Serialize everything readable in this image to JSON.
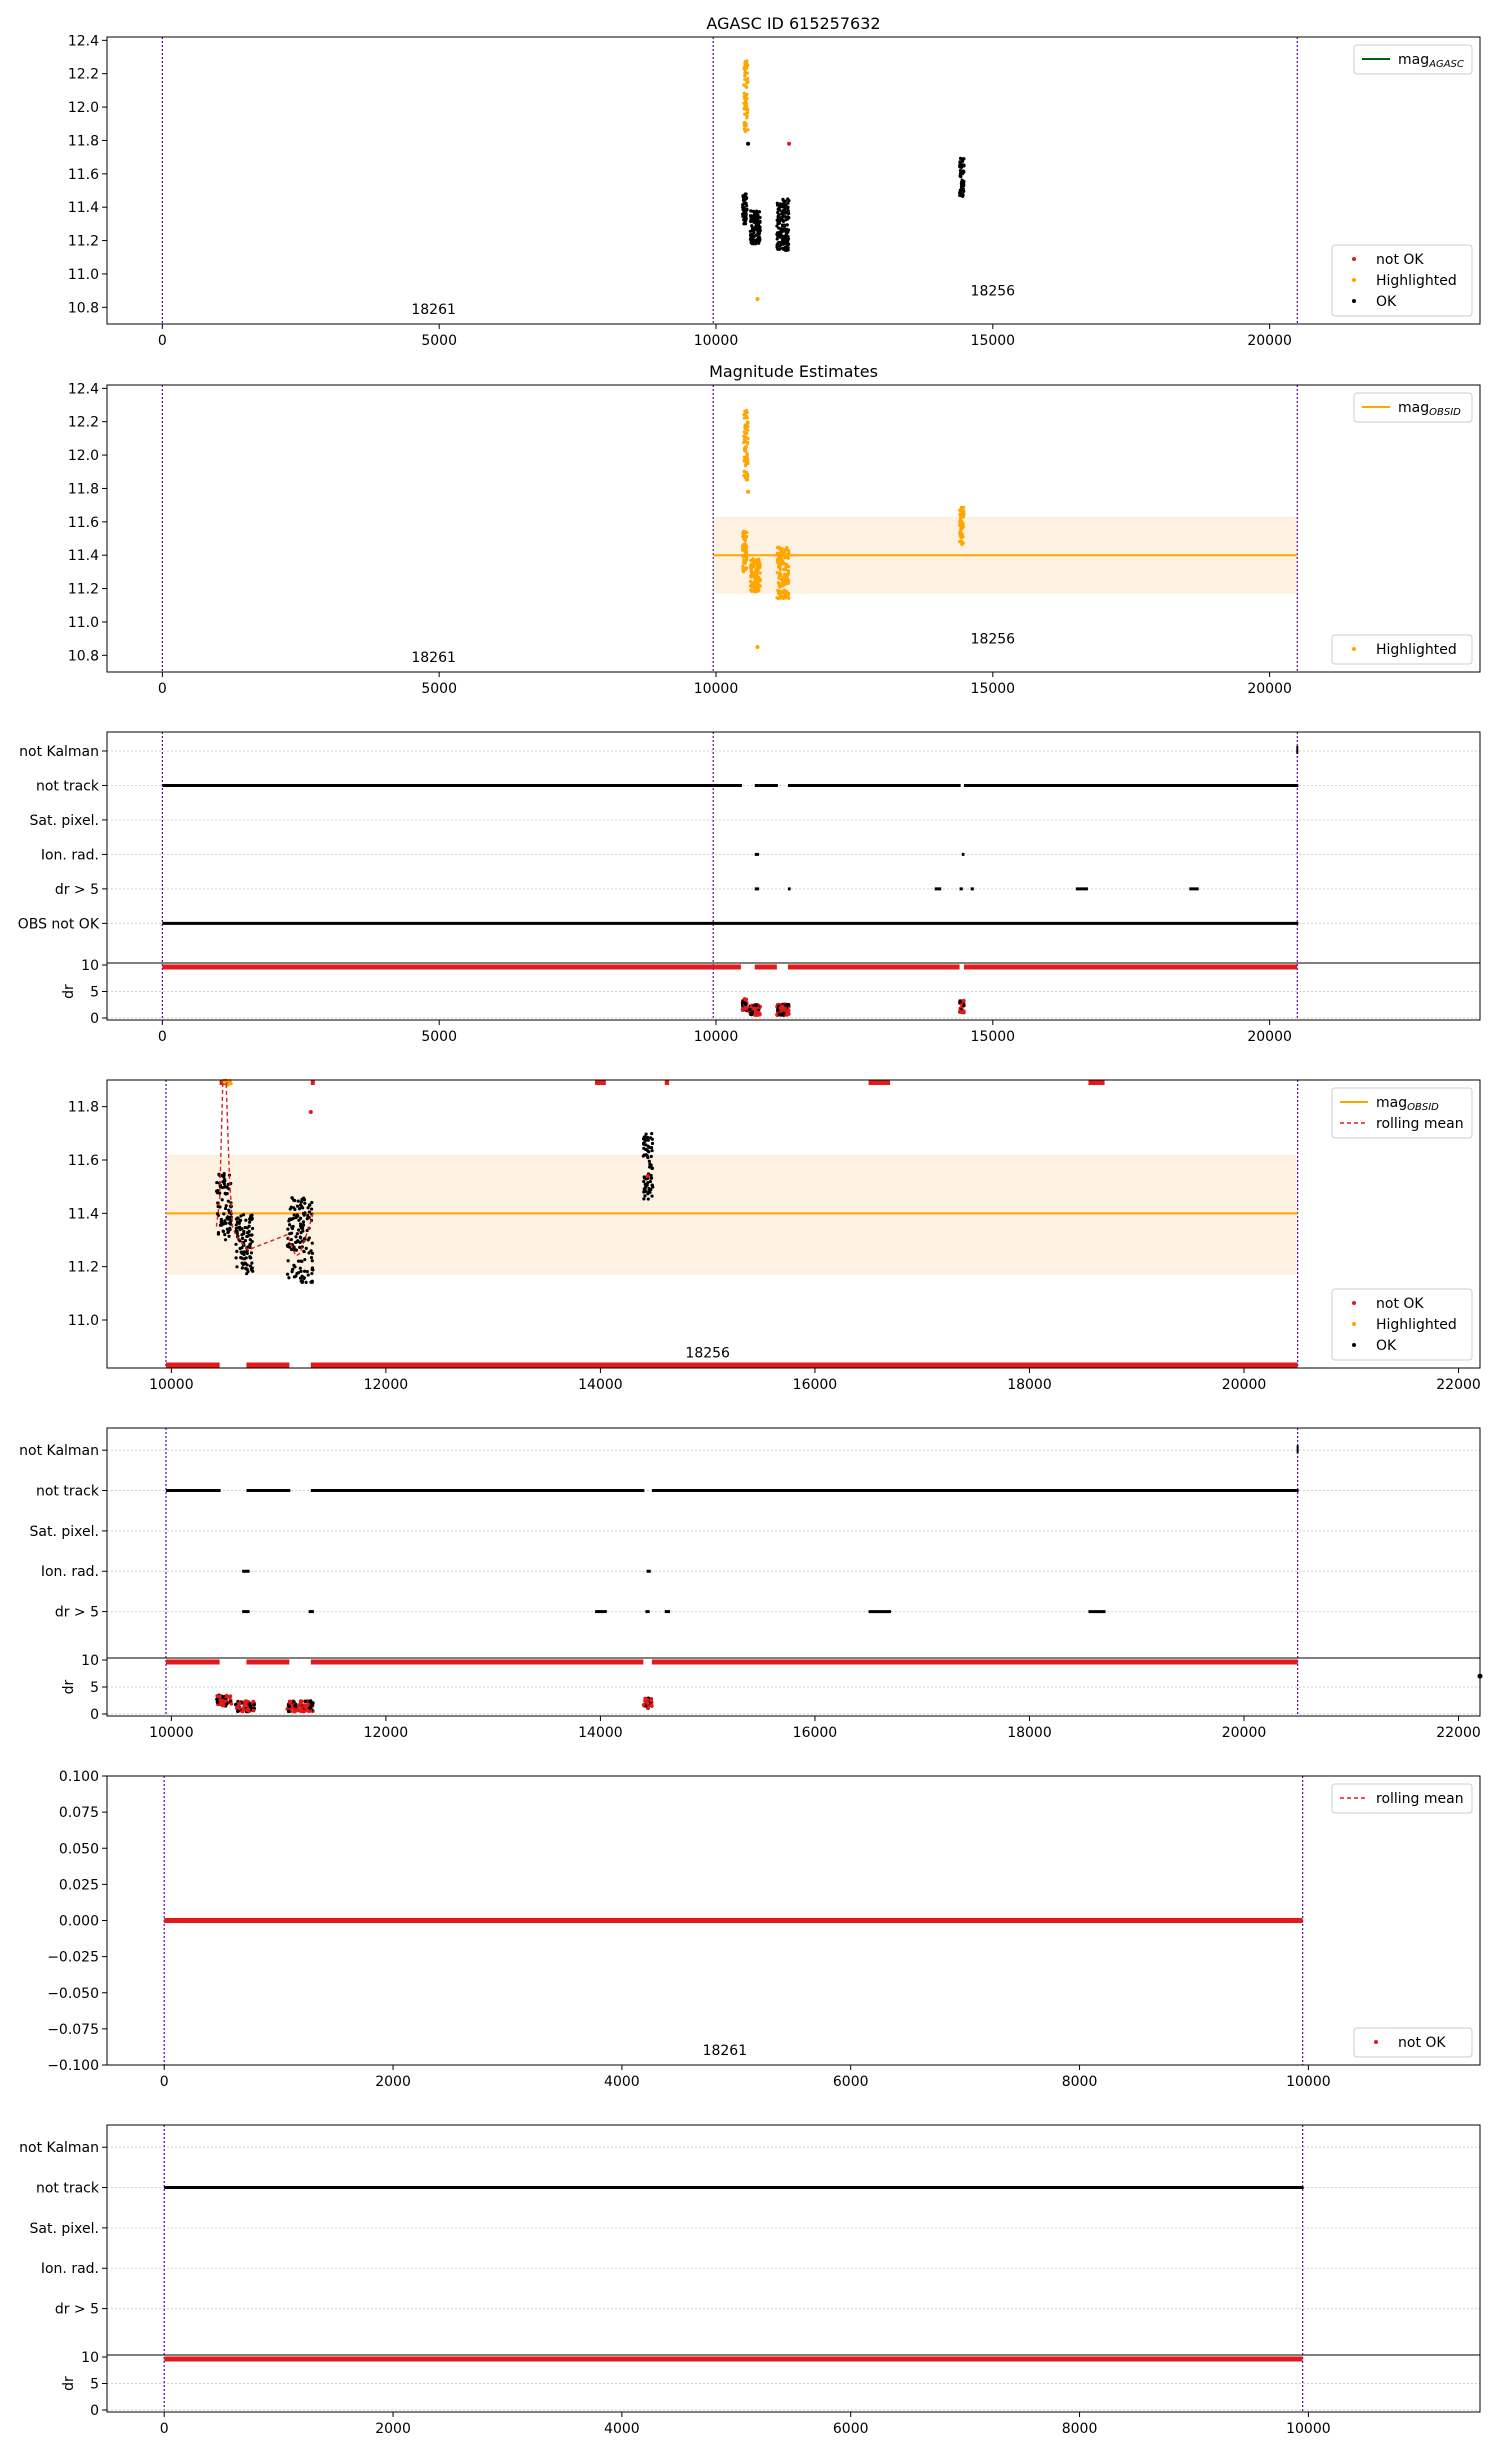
{
  "figure": {
    "panels": [
      {
        "id": "p1",
        "kind": "mag",
        "title": "AGASC ID 615257632",
        "xlim": [
          -1000,
          23800
        ],
        "ylim": [
          10.7,
          12.42
        ],
        "xticks": [
          0,
          5000,
          10000,
          15000,
          20000
        ],
        "yticks": [
          10.8,
          11.0,
          11.2,
          11.4,
          11.6,
          11.8,
          12.0,
          12.2,
          12.4
        ],
        "obs_lines": [
          0,
          9950,
          20500
        ],
        "obs_labels": [
          {
            "text": "18261",
            "x": 4900,
            "y": 10.76
          },
          {
            "text": "18256",
            "x": 15000,
            "y": 10.87
          }
        ],
        "band": null,
        "mean_line": {
          "y": 11.38,
          "x": [
            0,
            20500
          ],
          "color": "#006400",
          "show": false
        },
        "legend_top": [
          {
            "label": "mag",
            "sub": "AGASC",
            "style": "line",
            "color": "#006400"
          }
        ],
        "legend_bottom": [
          {
            "label": "not OK",
            "style": "dot",
            "color": "#e31a1c"
          },
          {
            "label": "Highlighted",
            "style": "dot",
            "color": "#ffa500"
          },
          {
            "label": "OK",
            "style": "dot",
            "color": "#000000"
          }
        ],
        "clusters": [
          {
            "x": [
              10480,
              10560
            ],
            "y": [
              11.3,
              11.48
            ],
            "n": 70,
            "color": "#000000"
          },
          {
            "x": [
              10500,
              10580
            ],
            "y": [
              11.85,
              12.28
            ],
            "n": 70,
            "color": "#ffa500"
          },
          {
            "x": [
              10620,
              10800
            ],
            "y": [
              11.18,
              11.38
            ],
            "n": 120,
            "color": "#000000"
          },
          {
            "x": [
              11100,
              11320
            ],
            "y": [
              11.14,
              11.45
            ],
            "n": 150,
            "color": "#000000"
          },
          {
            "x": [
              14400,
              14480
            ],
            "y": [
              11.46,
              11.7
            ],
            "n": 60,
            "color": "#000000"
          }
        ],
        "points": [
          {
            "x": 11320,
            "y": 11.78,
            "color": "#e31a1c"
          },
          {
            "x": 10750,
            "y": 10.85,
            "color": "#ffa500"
          },
          {
            "x": 10580,
            "y": 11.78,
            "color": "#000000"
          }
        ],
        "rolling": null,
        "bottom_markers": false
      },
      {
        "id": "p2",
        "kind": "mag",
        "title": "Magnitude Estimates",
        "xlim": [
          -1000,
          23800
        ],
        "ylim": [
          10.7,
          12.42
        ],
        "xticks": [
          0,
          5000,
          10000,
          15000,
          20000
        ],
        "yticks": [
          10.8,
          11.0,
          11.2,
          11.4,
          11.6,
          11.8,
          12.0,
          12.2,
          12.4
        ],
        "obs_lines": [
          0,
          9950,
          20500
        ],
        "obs_labels": [
          {
            "text": "18261",
            "x": 4900,
            "y": 10.76
          },
          {
            "text": "18256",
            "x": 15000,
            "y": 10.87
          }
        ],
        "band": {
          "x": [
            9950,
            20500
          ],
          "y": [
            11.17,
            11.63
          ],
          "color": "#fdf2e2"
        },
        "mean_line": {
          "y": 11.4,
          "x": [
            9950,
            20500
          ],
          "color": "#ffa500",
          "show": true
        },
        "legend_top": [
          {
            "label": "mag",
            "sub": "OBSID",
            "style": "line",
            "color": "#ffa500"
          }
        ],
        "legend_bottom": [
          {
            "label": "Highlighted",
            "style": "dot",
            "color": "#ffa500"
          }
        ],
        "clusters": [
          {
            "x": [
              10480,
              10560
            ],
            "y": [
              11.3,
              11.55
            ],
            "n": 70,
            "color": "#ffa500"
          },
          {
            "x": [
              10500,
              10580
            ],
            "y": [
              11.85,
              12.28
            ],
            "n": 70,
            "color": "#ffa500"
          },
          {
            "x": [
              10620,
              10800
            ],
            "y": [
              11.18,
              11.38
            ],
            "n": 120,
            "color": "#ffa500"
          },
          {
            "x": [
              11100,
              11320
            ],
            "y": [
              11.14,
              11.45
            ],
            "n": 150,
            "color": "#ffa500"
          },
          {
            "x": [
              14400,
              14480
            ],
            "y": [
              11.46,
              11.7
            ],
            "n": 60,
            "color": "#ffa500"
          }
        ],
        "points": [
          {
            "x": 10750,
            "y": 10.85,
            "color": "#ffa500"
          },
          {
            "x": 10580,
            "y": 11.78,
            "color": "#ffa500"
          }
        ],
        "rolling": null,
        "bottom_markers": false
      },
      {
        "id": "p3",
        "kind": "flags",
        "xlim": [
          -1000,
          23800
        ],
        "xticks": [
          0,
          5000,
          10000,
          15000,
          20000
        ],
        "obs_lines": [
          0,
          9950,
          20500
        ],
        "flag_labels": [
          "not Kalman",
          "not track",
          "Sat. pixel.",
          "Ion. rad.",
          "dr > 5",
          "OBS not OK"
        ],
        "flag_segments": [
          {
            "row": 1,
            "segments": [
              [
                0,
                10450
              ],
              [
                10700,
                11100
              ],
              [
                11300,
                14400
              ],
              [
                14480,
                20500
              ]
            ]
          },
          {
            "row": 3,
            "segments": [
              [
                10700,
                10760
              ],
              [
                14440,
                14470
              ]
            ]
          },
          {
            "row": 4,
            "segments": [
              [
                10700,
                10760
              ],
              [
                11300,
                11330
              ],
              [
                13950,
                14050
              ],
              [
                14400,
                14440
              ],
              [
                14600,
                14640
              ],
              [
                16500,
                16700
              ],
              [
                18550,
                18700
              ]
            ]
          },
          {
            "row": 5,
            "segments": [
              [
                0,
                20500
              ]
            ]
          }
        ],
        "not_kalman_tick": 20500,
        "dr_label": "dr",
        "dr_yticks": [
          0,
          5,
          10
        ],
        "dr_line_x": [
          0,
          20500
        ],
        "dr_gaps": [
          [
            10450,
            10700
          ],
          [
            11100,
            11300
          ],
          [
            14400,
            14480
          ]
        ],
        "dr_clusters": [
          {
            "x": [
              10480,
              10560
            ],
            "y": [
              1.2,
              3.6
            ],
            "n": 50
          },
          {
            "x": [
              10600,
              10800
            ],
            "y": [
              0.5,
              2.5
            ],
            "n": 70
          },
          {
            "x": [
              11100,
              11320
            ],
            "y": [
              0.5,
              2.6
            ],
            "n": 80
          },
          {
            "x": [
              14400,
              14480
            ],
            "y": [
              1.0,
              3.3
            ],
            "n": 30
          }
        ]
      },
      {
        "id": "p4",
        "kind": "mag",
        "title": "",
        "xlim": [
          9400,
          22200
        ],
        "ylim": [
          10.82,
          11.9
        ],
        "xticks": [
          10000,
          12000,
          14000,
          16000,
          18000,
          20000,
          22000
        ],
        "yticks": [
          11.0,
          11.2,
          11.4,
          11.6,
          11.8
        ],
        "obs_lines": [
          9950,
          20500
        ],
        "obs_labels": [
          {
            "text": "18256",
            "x": 15000,
            "y": 10.86
          }
        ],
        "band": {
          "x": [
            9950,
            20500
          ],
          "y": [
            11.17,
            11.62
          ],
          "color": "#fdf2e2"
        },
        "mean_line": {
          "y": 11.4,
          "x": [
            9950,
            20500
          ],
          "color": "#ffa500",
          "show": true
        },
        "legend_top": [
          {
            "label": "mag",
            "sub": "OBSID",
            "style": "line",
            "color": "#ffa500"
          },
          {
            "label": "rolling mean",
            "style": "dash",
            "color": "#e31a1c"
          }
        ],
        "legend_bottom": [
          {
            "label": "not OK",
            "style": "dot",
            "color": "#e31a1c"
          },
          {
            "label": "Highlighted",
            "style": "dot",
            "color": "#ffa500"
          },
          {
            "label": "OK",
            "style": "dot",
            "color": "#000000"
          }
        ],
        "clusters": [
          {
            "x": [
              10420,
              10560
            ],
            "y": [
              11.3,
              11.55
            ],
            "n": 80,
            "color": "#000000"
          },
          {
            "x": [
              10600,
              10760
            ],
            "y": [
              11.17,
              11.4
            ],
            "n": 100,
            "color": "#000000"
          },
          {
            "x": [
              11080,
              11320
            ],
            "y": [
              11.14,
              11.46
            ],
            "n": 140,
            "color": "#000000"
          },
          {
            "x": [
              14400,
              14490
            ],
            "y": [
              11.45,
              11.7
            ],
            "n": 70,
            "color": "#000000"
          },
          {
            "x": [
              10480,
              10560
            ],
            "y": [
              11.88,
              11.9
            ],
            "n": 12,
            "color": "#ffa500"
          }
        ],
        "points": [
          {
            "x": 11300,
            "y": 11.78,
            "color": "#e31a1c"
          },
          {
            "x": 14440,
            "y": 11.54,
            "color": "#e31a1c"
          }
        ],
        "rolling": {
          "x": [
            10420,
            10450,
            10480,
            10510,
            10540,
            10570,
            10600,
            10640,
            10680,
            10720,
            10760,
            11080,
            11120,
            11160,
            11200,
            11240,
            11280,
            11320
          ],
          "y": [
            11.35,
            11.45,
            11.9,
            11.9,
            11.55,
            11.35,
            11.32,
            11.3,
            11.28,
            11.26,
            11.27,
            11.32,
            11.28,
            11.24,
            11.25,
            11.3,
            11.34,
            11.4
          ]
        },
        "bottom_markers": true,
        "top_markers": [
          [
            10450,
            10560
          ],
          [
            11300,
            11320
          ],
          [
            13950,
            14050
          ],
          [
            14600,
            14640
          ],
          [
            16500,
            16700
          ],
          [
            18550,
            18700
          ]
        ]
      },
      {
        "id": "p5",
        "kind": "flags",
        "xlim": [
          9400,
          22200
        ],
        "xticks": [
          10000,
          12000,
          14000,
          16000,
          18000,
          20000,
          22000
        ],
        "obs_lines": [
          9950,
          20500
        ],
        "flag_labels": [
          "not Kalman",
          "not track",
          "Sat. pixel.",
          "Ion. rad.",
          "dr > 5"
        ],
        "flag_segments": [
          {
            "row": 1,
            "segments": [
              [
                9950,
                10450
              ],
              [
                10700,
                11100
              ],
              [
                11300,
                14400
              ],
              [
                14480,
                20500
              ]
            ]
          },
          {
            "row": 3,
            "segments": [
              [
                10660,
                10720
              ],
              [
                14430,
                14460
              ]
            ]
          },
          {
            "row": 4,
            "segments": [
              [
                10660,
                10720
              ],
              [
                11280,
                11320
              ],
              [
                13950,
                14050
              ],
              [
                14420,
                14450
              ],
              [
                14600,
                14640
              ],
              [
                16500,
                16700
              ],
              [
                18550,
                18700
              ]
            ]
          }
        ],
        "not_kalman_tick": 20500,
        "dr_label": "dr",
        "dr_yticks": [
          0,
          5,
          10
        ],
        "dr_line_x": [
          9950,
          20500
        ],
        "dr_gaps": [
          [
            10450,
            10700
          ],
          [
            11100,
            11300
          ],
          [
            14400,
            14480
          ]
        ],
        "dr_clusters": [
          {
            "x": [
              10420,
              10560
            ],
            "y": [
              1.5,
              3.5
            ],
            "n": 60
          },
          {
            "x": [
              10600,
              10780
            ],
            "y": [
              0.4,
              2.4
            ],
            "n": 70
          },
          {
            "x": [
              11080,
              11320
            ],
            "y": [
              0.4,
              2.4
            ],
            "n": 90
          },
          {
            "x": [
              14400,
              14480
            ],
            "y": [
              1.0,
              3.2
            ],
            "n": 30
          }
        ],
        "edge_dot": {
          "x": 22200,
          "y": 7
        }
      },
      {
        "id": "p6",
        "kind": "mag",
        "title": "",
        "xlim": [
          -500,
          11500
        ],
        "ylim": [
          -0.1,
          0.1
        ],
        "xticks": [
          0,
          2000,
          4000,
          6000,
          8000,
          10000
        ],
        "yticks": [
          -0.1,
          -0.075,
          -0.05,
          -0.025,
          0.0,
          0.025,
          0.05,
          0.075,
          0.1
        ],
        "ytick_labels": [
          "−0.100",
          "−0.075",
          "−0.050",
          "−0.025",
          "0.000",
          "0.025",
          "0.050",
          "0.075",
          "0.100"
        ],
        "obs_lines": [
          0,
          9950
        ],
        "obs_labels": [
          {
            "text": "18261",
            "x": 4900,
            "y": -0.093
          }
        ],
        "band": null,
        "mean_line": null,
        "legend_top": [
          {
            "label": "rolling mean",
            "style": "dash",
            "color": "#e31a1c"
          }
        ],
        "legend_bottom": [
          {
            "label": "not OK",
            "style": "dot",
            "color": "#e31a1c"
          }
        ],
        "clusters": [],
        "points": [],
        "red_line": {
          "x": [
            0,
            9950
          ],
          "y": 0.0
        },
        "rolling": null,
        "bottom_markers": false
      },
      {
        "id": "p7",
        "kind": "flags",
        "xlim": [
          -500,
          11500
        ],
        "xticks": [
          0,
          2000,
          4000,
          6000,
          8000,
          10000
        ],
        "obs_lines": [
          0,
          9950
        ],
        "flag_labels": [
          "not Kalman",
          "not track",
          "Sat. pixel.",
          "Ion. rad.",
          "dr > 5"
        ],
        "flag_segments": [
          {
            "row": 1,
            "segments": [
              [
                0,
                9950
              ]
            ]
          }
        ],
        "not_kalman_tick": null,
        "dr_label": "dr",
        "dr_yticks": [
          0,
          5,
          10
        ],
        "dr_line_x": [
          0,
          9950
        ],
        "dr_gaps": [],
        "dr_clusters": []
      }
    ]
  }
}
